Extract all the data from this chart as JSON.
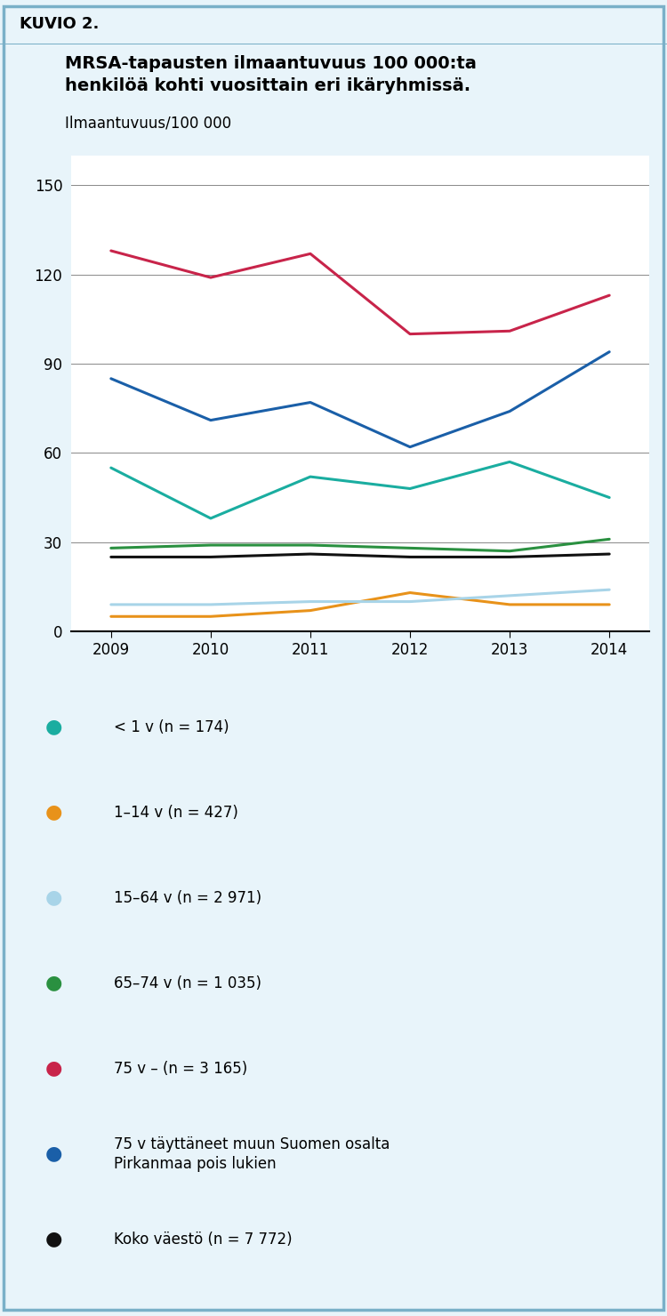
{
  "title_box": "KUVIO 2.",
  "title_line1": "MRSA-tapausten ilmaantuvuus 100 000:ta",
  "title_line2": "henkilöä kohti vuosittain eri ikäryhmissä.",
  "ylabel": "Ilmaantuvuus/100 000",
  "years": [
    2009,
    2010,
    2011,
    2012,
    2013,
    2014
  ],
  "series": [
    {
      "label": "< 1 v (n = 174)",
      "color": "#1aada0",
      "values": [
        55,
        38,
        52,
        48,
        57,
        45
      ]
    },
    {
      "label": "1–14 v (n = 427)",
      "color": "#e8921a",
      "values": [
        5,
        5,
        7,
        13,
        9,
        9
      ]
    },
    {
      "label": "15–64 v (n = 2 971)",
      "color": "#a8d4e8",
      "values": [
        9,
        9,
        10,
        10,
        12,
        14
      ]
    },
    {
      "label": "65–74 v (n = 1 035)",
      "color": "#2a9040",
      "values": [
        28,
        29,
        29,
        28,
        27,
        31
      ]
    },
    {
      "label": "75 v – (n = 3 165)",
      "color": "#c8244a",
      "values": [
        128,
        119,
        127,
        100,
        101,
        113
      ]
    },
    {
      "label": "75 v täyttäneet muun Suomen osalta\nPirkanmaa pois lukien",
      "color": "#1a5fa8",
      "values": [
        85,
        71,
        77,
        62,
        74,
        94
      ]
    },
    {
      "label": "Koko väestö (n = 7 772)",
      "color": "#111111",
      "values": [
        25,
        25,
        26,
        25,
        25,
        26
      ]
    }
  ],
  "ylim": [
    0,
    160
  ],
  "yticks": [
    0,
    30,
    60,
    90,
    120,
    150
  ],
  "fig_bg": "#e8f4fa",
  "chart_bg": "#ffffff",
  "header_bg": "#b8daea",
  "border_color": "#7ab0c8"
}
